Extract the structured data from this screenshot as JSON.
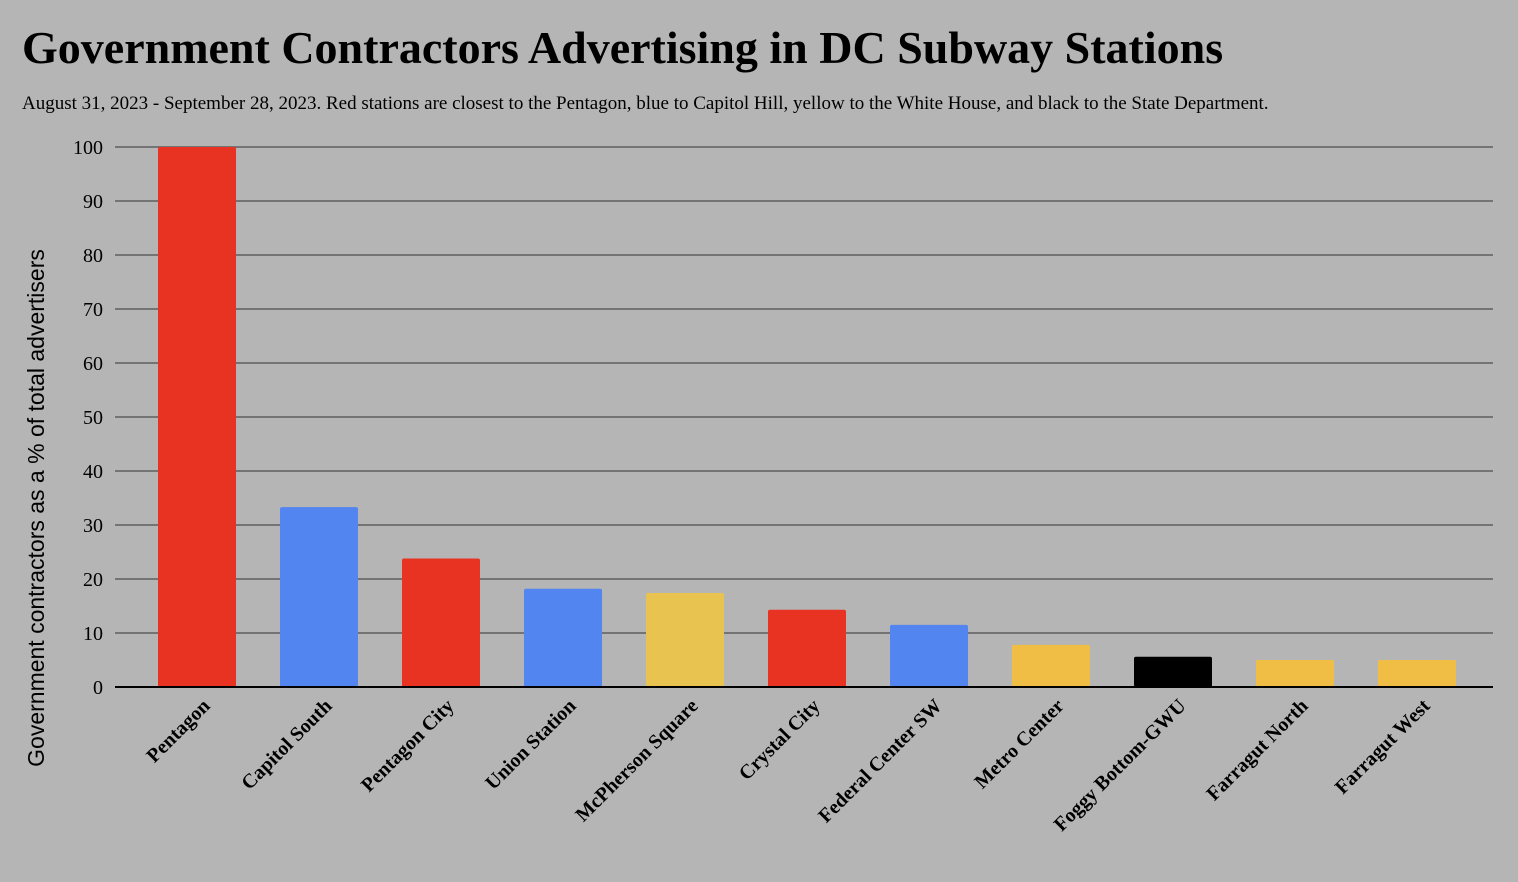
{
  "chart_data": {
    "type": "bar",
    "title": "Government Contractors Advertising in DC Subway Stations",
    "subtitle": "August 31, 2023 - September 28, 2023. Red stations are closest to the Pentagon, blue to Capitol Hill, yellow to the White House, and black to the State Department.",
    "xlabel": "",
    "ylabel": "Government contractors as a % of total advertisers",
    "ylim": [
      0,
      100
    ],
    "yticks": [
      0,
      10,
      20,
      30,
      40,
      50,
      60,
      70,
      80,
      90,
      100
    ],
    "grid": true,
    "categories": [
      "Pentagon",
      "Capitol South",
      "Pentagon City",
      "Union Station",
      "McPherson Square",
      "Crystal City",
      "Federal Center SW",
      "Metro Center",
      "Foggy Bottom-GWU",
      "Farragut North",
      "Farragut West"
    ],
    "values": [
      100,
      33.3,
      23.8,
      18.2,
      17.4,
      14.3,
      11.5,
      7.8,
      5.6,
      5,
      5
    ],
    "groups": [
      "Pentagon",
      "Capitol Hill",
      "Pentagon",
      "Capitol Hill",
      "White House",
      "Pentagon",
      "Capitol Hill",
      "White House",
      "State Department",
      "White House",
      "White House"
    ],
    "bar_colors": [
      "#e83323",
      "#5285ef",
      "#e83323",
      "#5285ef",
      "#e8c34f",
      "#e83323",
      "#5285ef",
      "#f0bd45",
      "#000000",
      "#f0bd45",
      "#f0bd45"
    ]
  },
  "colors": {
    "background": "#b5b5b5",
    "gridline": "#5e5e5e",
    "axis": "#000000"
  }
}
